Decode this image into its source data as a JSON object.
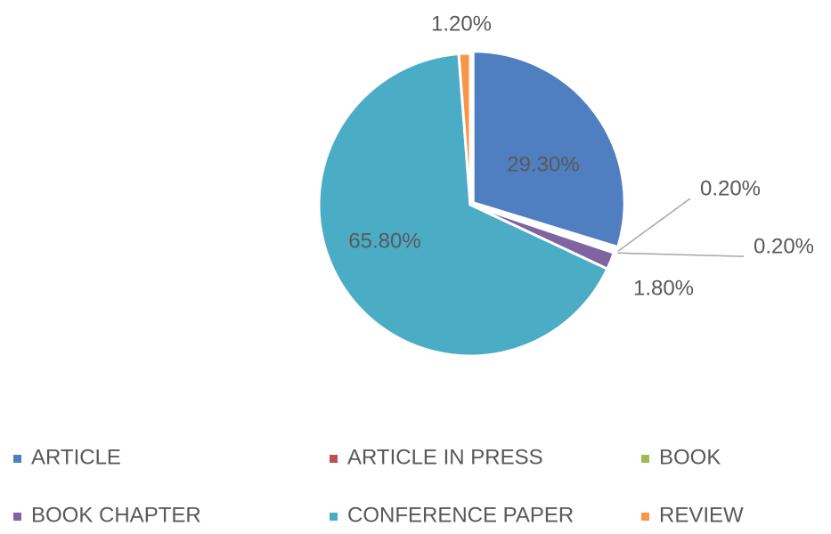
{
  "chart_data": {
    "type": "pie",
    "categories": [
      "ARTICLE",
      "ARTICLE IN PRESS",
      "BOOK",
      "BOOK CHAPTER",
      "CONFERENCE PAPER",
      "REVIEW"
    ],
    "values": [
      29.3,
      0.2,
      0.2,
      1.8,
      65.8,
      1.2
    ],
    "value_labels": [
      "29.30%",
      "0.20%",
      "0.20%",
      "1.80%",
      "65.80%",
      "1.20%"
    ],
    "colors": [
      "#4f7fc1",
      "#c0504d",
      "#9bbb59",
      "#8064a2",
      "#4bacc6",
      "#f79646"
    ],
    "legend": "bottom"
  }
}
